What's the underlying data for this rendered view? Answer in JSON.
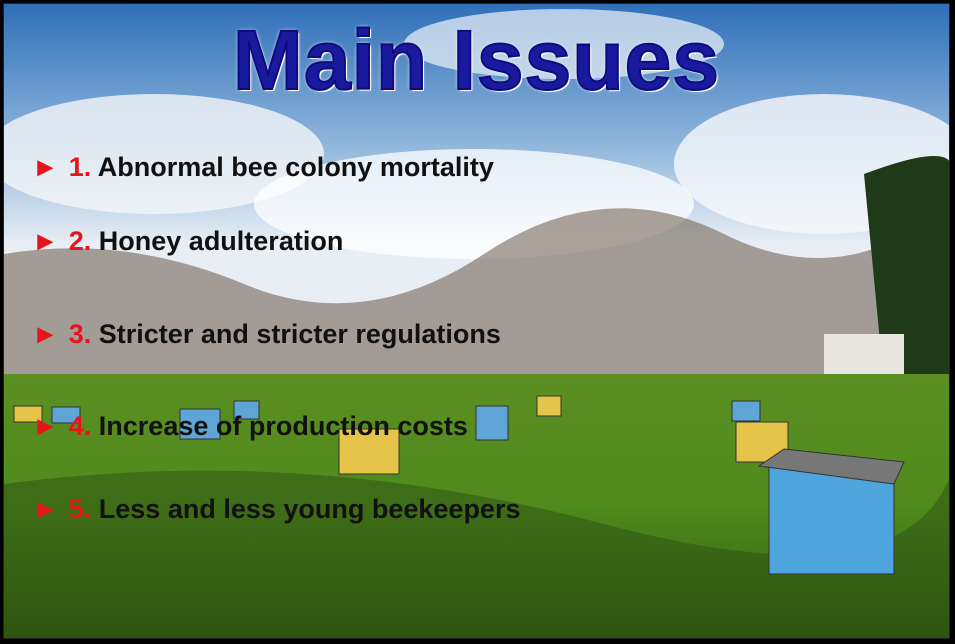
{
  "slide": {
    "title": "Main Issues",
    "items": [
      {
        "marker": "►",
        "number": "1.",
        "text": "Abnormal bee colony mortality"
      },
      {
        "marker": "►",
        "number": "2.",
        "text": "Honey adulteration"
      },
      {
        "marker": "►",
        "number": "3.",
        "text": "Stricter and stricter regulations"
      },
      {
        "marker": "►",
        "number": "4.",
        "text": "Increase of production costs"
      },
      {
        "marker": "►",
        "number": "5.",
        "text": "Less and less young beekeepers"
      }
    ]
  }
}
